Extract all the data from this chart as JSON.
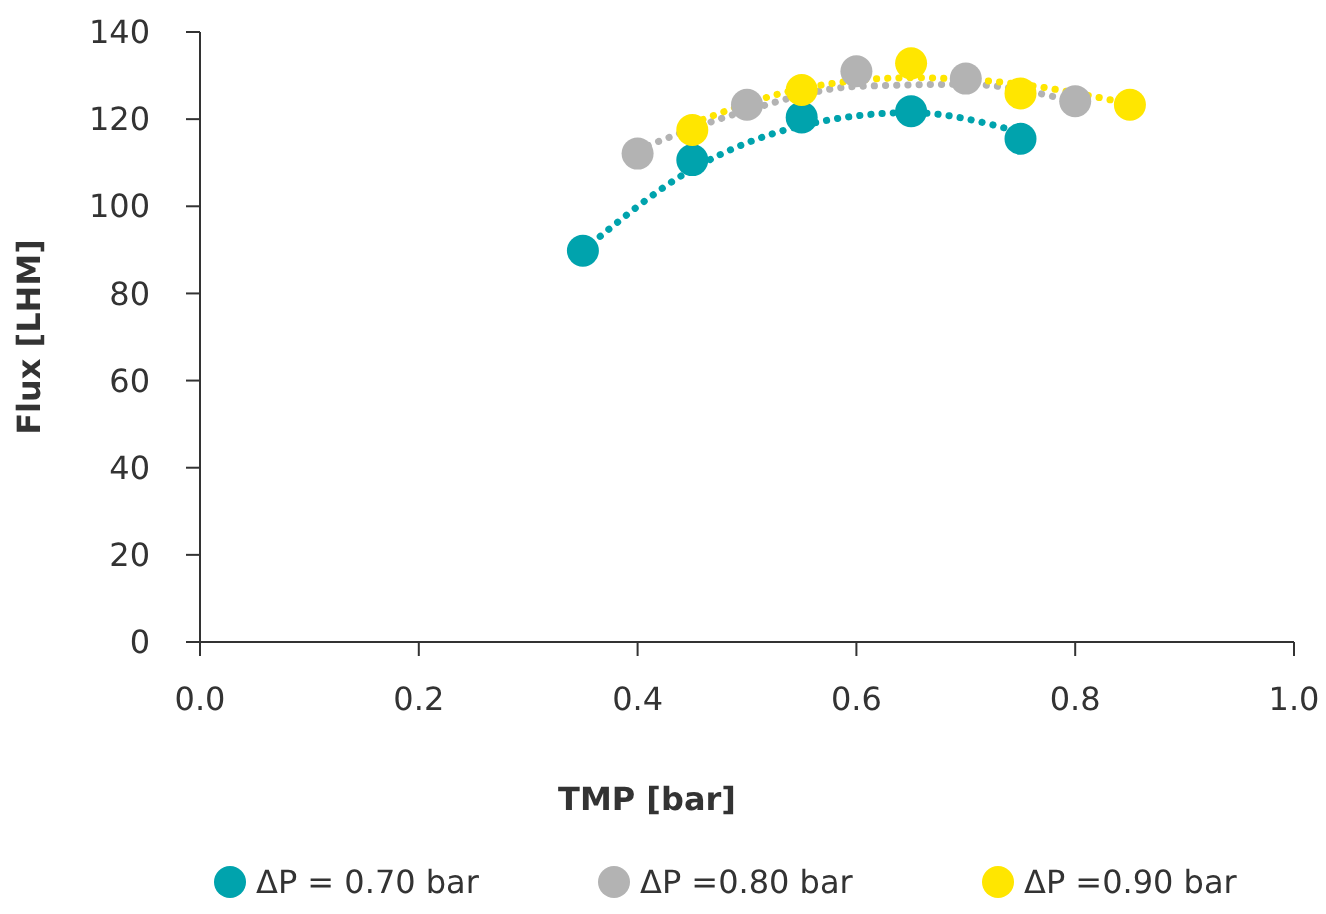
{
  "chart_data": {
    "type": "scatter",
    "xlabel": "TMP [bar]",
    "ylabel": "Flux [LHM]",
    "xlim": [
      0,
      1
    ],
    "xticks": [
      {
        "value": 0,
        "label": "0.0"
      },
      {
        "value": 0.2,
        "label": "0.2"
      },
      {
        "value": 0.4,
        "label": "0.4"
      },
      {
        "value": 0.6,
        "label": "0.6"
      },
      {
        "value": 0.8,
        "label": "0.8"
      },
      {
        "value": 1,
        "label": "1.0"
      }
    ],
    "ylim": [
      0,
      140
    ],
    "yticks": [
      0,
      20,
      40,
      60,
      80,
      100,
      120,
      140
    ],
    "grid": false,
    "legend": "bottom",
    "marker": "circle",
    "series": [
      {
        "type": "line",
        "color": "#00a3ad",
        "marker": "none",
        "line_style": "dotted",
        "x": [
          0.35,
          0.45,
          0.55,
          0.65,
          0.75
        ],
        "values": [
          89.8,
          108.5,
          118.5,
          121.5,
          117
        ]
      },
      {
        "type": "line",
        "color": "#b3b3b3",
        "marker": "none",
        "line_style": "dotted",
        "x": [
          0.4,
          0.5,
          0.6,
          0.7,
          0.8
        ],
        "values": [
          113,
          122,
          127.5,
          128,
          124
        ]
      },
      {
        "type": "line",
        "color": "#ffe600",
        "marker": "none",
        "line_style": "dotted",
        "x": [
          0.45,
          0.55,
          0.65,
          0.75,
          0.85
        ],
        "values": [
          119,
          127,
          129.5,
          128,
          123.5
        ]
      },
      {
        "name": "ΔP = 0.70 bar",
        "color": "#00a3ad",
        "x": [
          0.35,
          0.45,
          0.55,
          0.65,
          0.75
        ],
        "values": [
          89.8,
          110.6,
          120.4,
          121.8,
          115.5
        ]
      },
      {
        "name": "ΔP =0.80 bar",
        "color": "#b3b3b3",
        "x": [
          0.4,
          0.5,
          0.6,
          0.7,
          0.8
        ],
        "values": [
          112.1,
          123.3,
          131,
          129.3,
          124.1
        ]
      },
      {
        "name": "ΔP =0.90 bar",
        "color": "#ffe600",
        "x": [
          0.45,
          0.55,
          0.65,
          0.75,
          0.85
        ],
        "values": [
          117.5,
          126.7,
          132.8,
          125.9,
          123.3
        ]
      }
    ]
  }
}
